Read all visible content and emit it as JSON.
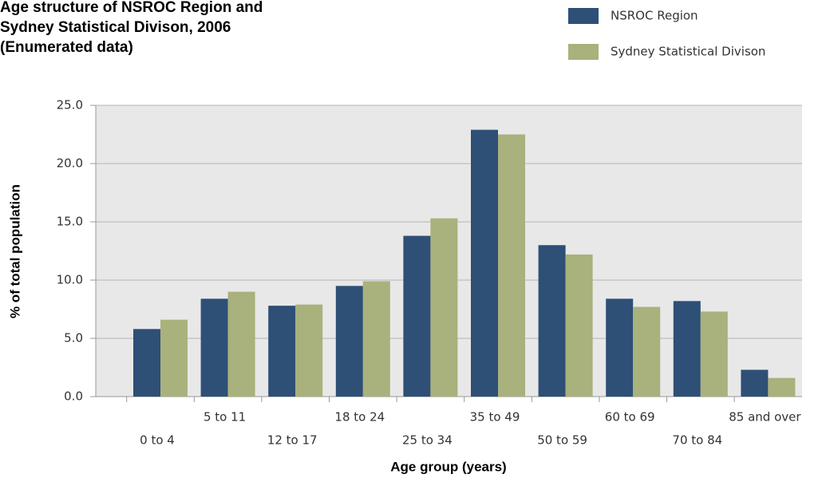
{
  "chart_data": {
    "type": "bar",
    "title": [
      "Age structure of NSROC Region and",
      "Sydney Statistical Divison, 2006",
      "(Enumerated data)"
    ],
    "x_label": "Age group (years)",
    "y_label": "% of total population",
    "categories": [
      "0 to 4",
      "5 to 11",
      "12 to 17",
      "18 to 24",
      "25 to 34",
      "35 to 49",
      "50 to 59",
      "60 to 69",
      "70 to 84",
      "85 and over"
    ],
    "series": [
      {
        "name": "NSROC Region",
        "color": "#2e4f76",
        "values": [
          5.8,
          8.4,
          7.8,
          9.5,
          13.8,
          22.9,
          13.0,
          8.4,
          8.2,
          2.3
        ]
      },
      {
        "name": "Sydney Statistical Divison",
        "color": "#a9b17c",
        "values": [
          6.6,
          9.0,
          7.9,
          9.9,
          15.3,
          22.5,
          12.2,
          7.7,
          7.3,
          1.6
        ]
      }
    ],
    "ylim": [
      0,
      25
    ],
    "yticks": [
      {
        "value": 0,
        "label": "0.0"
      },
      {
        "value": 5,
        "label": "5.0"
      },
      {
        "value": 10,
        "label": "10.0"
      },
      {
        "value": 15,
        "label": "15.0"
      },
      {
        "value": 20,
        "label": "20.0"
      },
      {
        "value": 25,
        "label": "25.0"
      }
    ],
    "grid": true
  }
}
